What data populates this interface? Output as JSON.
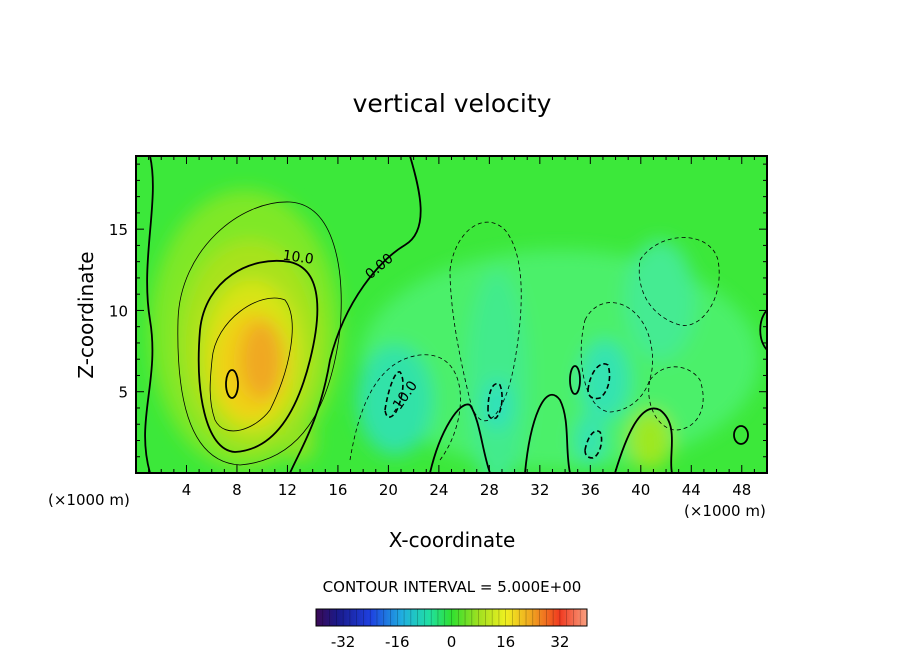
{
  "chart_data": {
    "type": "heatmap",
    "title": "vertical velocity",
    "xlabel": "X-coordinate",
    "ylabel": "Z-coordinate",
    "x_unit_left": "(×1000 m)",
    "x_unit_right": "(×1000 m)",
    "xlim": [
      0,
      50
    ],
    "ylim": [
      0,
      19.5
    ],
    "x_ticks": [
      4,
      8,
      12,
      16,
      20,
      24,
      28,
      32,
      36,
      40,
      44,
      48
    ],
    "y_ticks": [
      5,
      10,
      15
    ],
    "contour_interval_text": "CONTOUR INTERVAL = 5.000E+00",
    "contour_interval": 5.0,
    "contour_labels": [
      {
        "text": "10.0",
        "value": 10.0,
        "x": 12.8,
        "z": 13.0
      },
      {
        "text": "0.00",
        "value": 0.0,
        "x": 19.5,
        "z": 12.5
      },
      {
        "text": "-10.0",
        "value": -10.0,
        "x": 21.5,
        "z": 4.5
      }
    ],
    "colorbar": {
      "min": -40,
      "max": 40,
      "tick_labels": [
        "-32",
        "-16",
        "0",
        "16",
        "32"
      ],
      "tick_values": [
        -32,
        -16,
        0,
        16,
        32
      ]
    },
    "features": [
      {
        "x": 9.5,
        "z": 7.0,
        "value": 22,
        "desc": "updraft maximum"
      },
      {
        "x": 21.0,
        "z": 4.5,
        "value": -12,
        "desc": "downdraft"
      },
      {
        "x": 28.5,
        "z": 4.5,
        "value": -10,
        "desc": "downdraft"
      },
      {
        "x": 37.0,
        "z": 5.5,
        "value": -8,
        "desc": "downdraft"
      },
      {
        "x": 40.3,
        "z": 2.0,
        "value": 8,
        "desc": "updraft"
      }
    ]
  }
}
